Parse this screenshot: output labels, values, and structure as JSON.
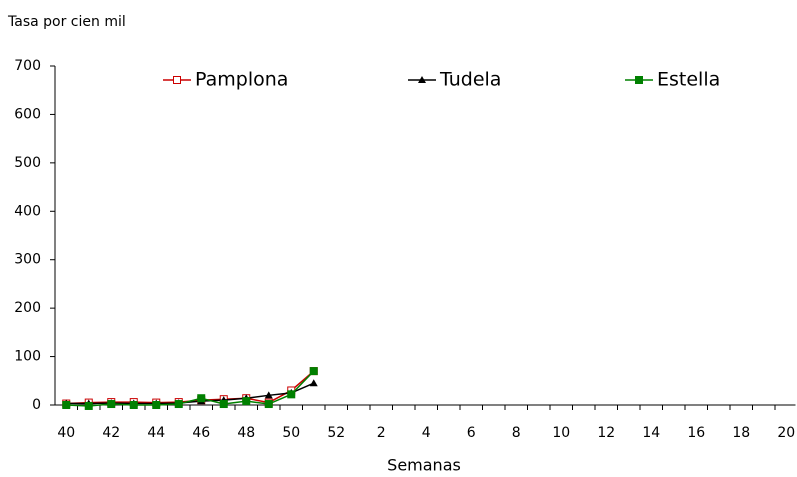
{
  "chart_data": {
    "type": "line",
    "y_label": "Tasa por cien mil",
    "x_label": "Semanas",
    "categories": [
      "40",
      null,
      "42",
      null,
      "44",
      null,
      "46",
      null,
      "48",
      null,
      "50",
      null,
      "52",
      null,
      "2",
      null,
      "4",
      null,
      "6",
      null,
      "8",
      null,
      "10",
      null,
      "12",
      null,
      "14",
      null,
      "16",
      null,
      "18",
      null,
      "20"
    ],
    "series": [
      {
        "name": "Pamplona",
        "color": "#cc0000",
        "marker": "open-square",
        "values": [
          3,
          5,
          6,
          6,
          5,
          6,
          10,
          12,
          14,
          5,
          30,
          70,
          null,
          null,
          null,
          null,
          null,
          null,
          null,
          null,
          null,
          null,
          null,
          null,
          null,
          null,
          null,
          null,
          null,
          null,
          null,
          null,
          null
        ]
      },
      {
        "name": "Tudela",
        "color": "#000000",
        "marker": "triangle",
        "values": [
          3,
          3,
          4,
          3,
          3,
          4,
          8,
          10,
          14,
          20,
          25,
          45,
          null,
          null,
          null,
          null,
          null,
          null,
          null,
          null,
          null,
          null,
          null,
          null,
          null,
          null,
          null,
          null,
          null,
          null,
          null,
          null,
          null
        ]
      },
      {
        "name": "Estella",
        "color": "#008000",
        "marker": "square",
        "values": [
          0,
          -2,
          2,
          0,
          0,
          2,
          14,
          2,
          8,
          2,
          22,
          70,
          null,
          null,
          null,
          null,
          null,
          null,
          null,
          null,
          null,
          null,
          null,
          null,
          null,
          null,
          null,
          null,
          null,
          null,
          null,
          null,
          null
        ]
      }
    ],
    "ylim": [
      0,
      700
    ],
    "yticks": [
      0,
      100,
      200,
      300,
      400,
      500,
      600,
      700
    ]
  }
}
